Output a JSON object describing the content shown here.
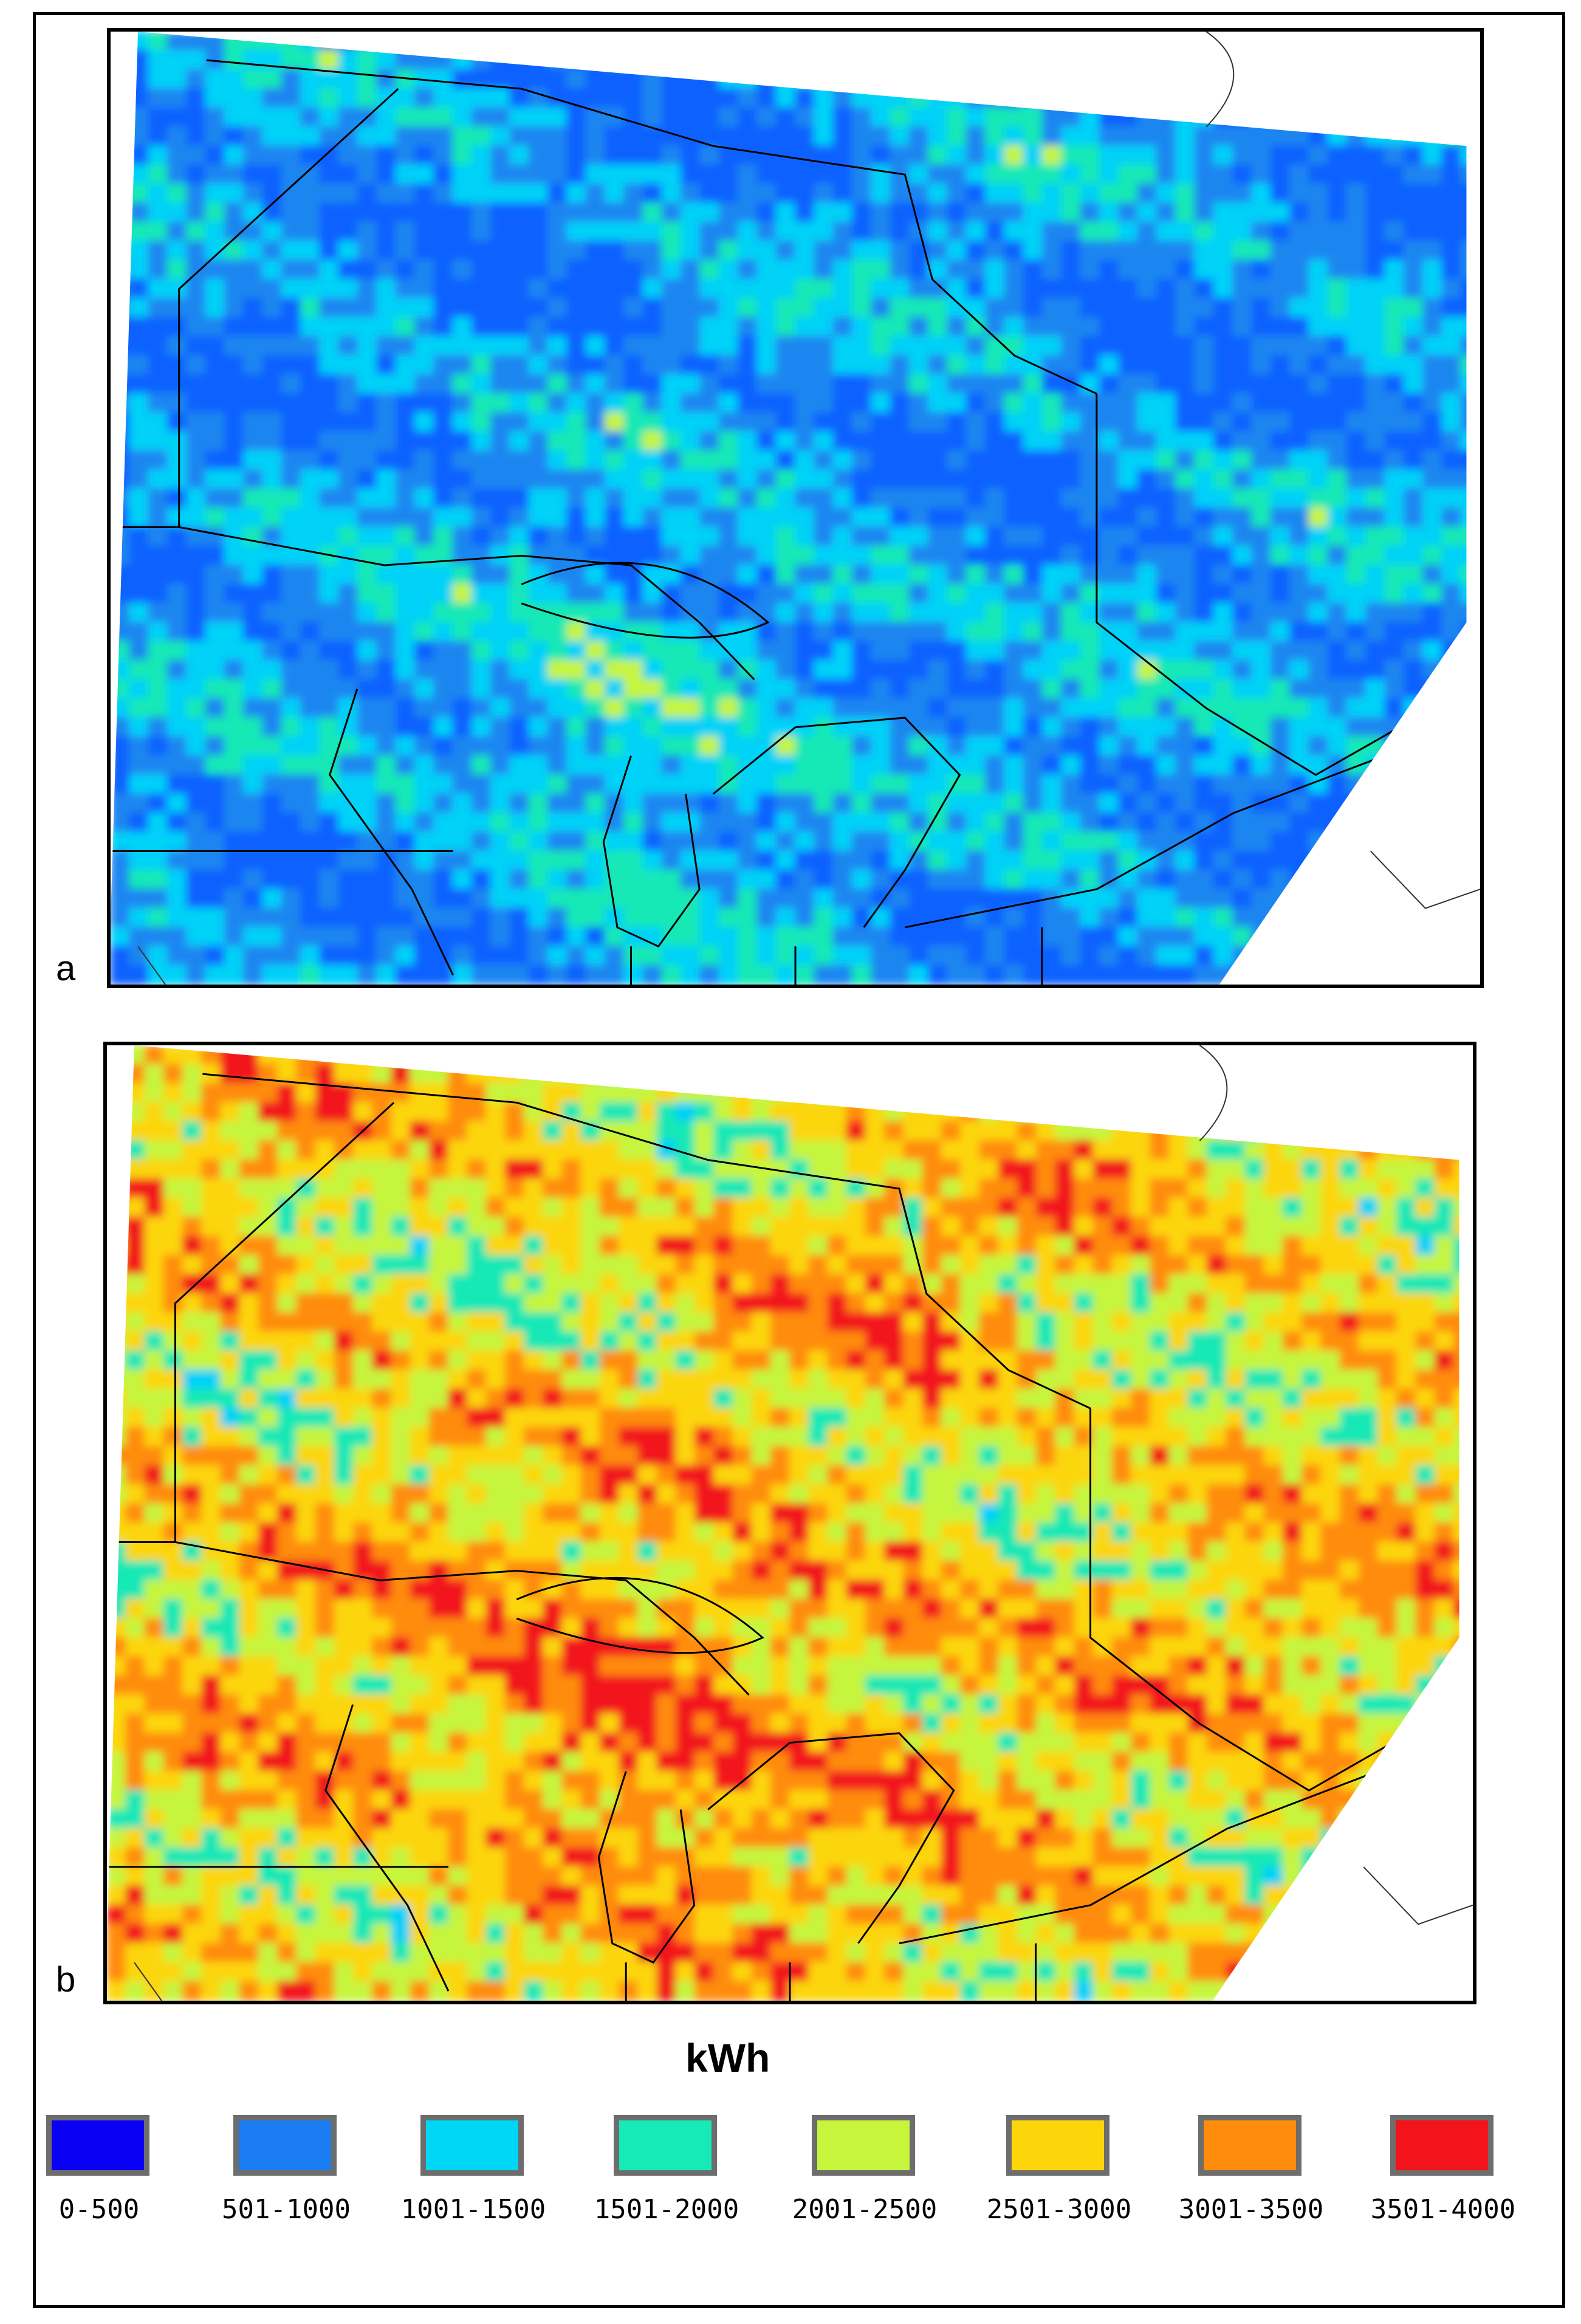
{
  "panels": [
    {
      "letter": "a",
      "palette": [
        "#0a62ff",
        "#1a86f0",
        "#00d2f8",
        "#16e8b6",
        "#c6f53c",
        "#fcd60a",
        "#ff8c0c",
        "#f2131b"
      ],
      "base": 2,
      "bias": -0.9,
      "spread": 2.4
    },
    {
      "letter": "b",
      "palette": [
        "#0a62ff",
        "#1a86f0",
        "#00d2f8",
        "#16e8b6",
        "#c6f53c",
        "#fcd60a",
        "#ff8c0c",
        "#f2131b"
      ],
      "base": 4,
      "bias": 0.9,
      "spread": 2.6
    }
  ],
  "unit": "kWh",
  "legend": [
    {
      "label": "0-500",
      "color": "#0a00f4"
    },
    {
      "label": "501-1000",
      "color": "#1a7cf2"
    },
    {
      "label": "1001-1500",
      "color": "#00d6f6"
    },
    {
      "label": "1501-2000",
      "color": "#16eab6"
    },
    {
      "label": "2001-2500",
      "color": "#c6f53c"
    },
    {
      "label": "2501-3000",
      "color": "#fcd60a"
    },
    {
      "label": "3001-3500",
      "color": "#ff8c0c"
    },
    {
      "label": "3501-4000",
      "color": "#f2131b"
    }
  ]
}
